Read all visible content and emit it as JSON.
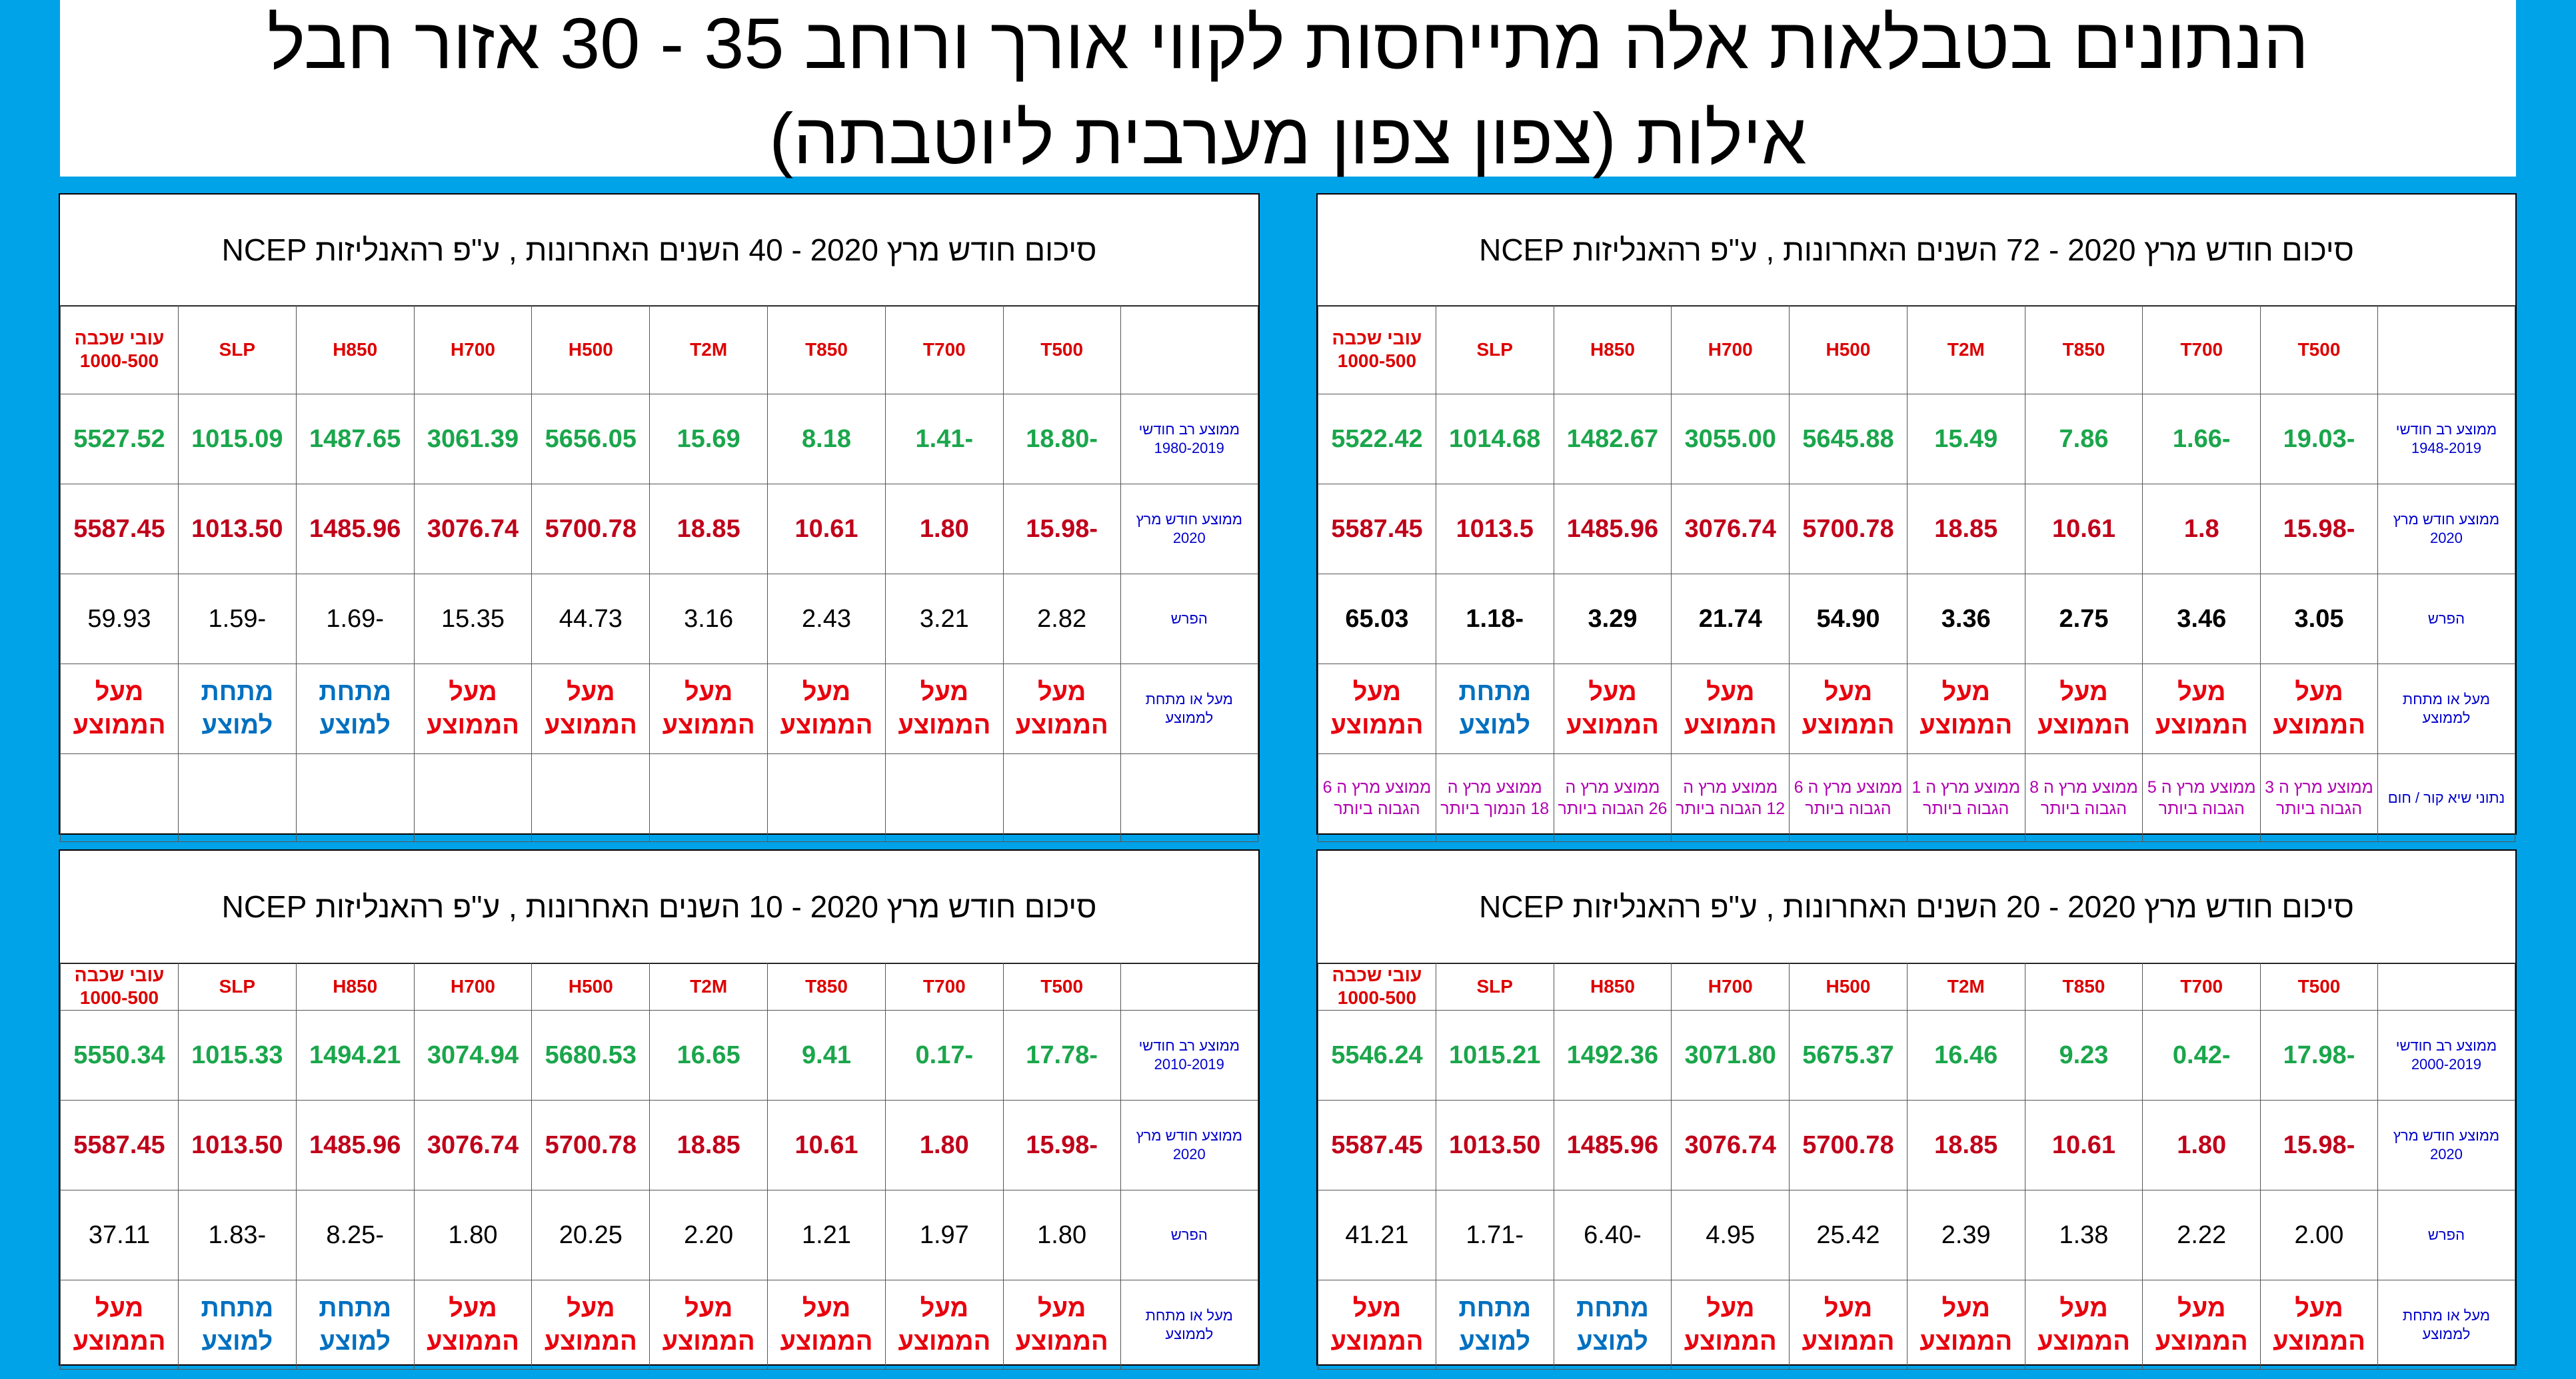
{
  "title": {
    "line1": "הנתונים בטבלאות אלה מתייחסות לקווי אורך ורוחב 35 - 30      אזור חבל",
    "line2": "אילות  (צפון צפון מערבית ליוטבתה)"
  },
  "colors": {
    "background": "#00a2e8",
    "green": "#1aa64b",
    "red": "#c0001a",
    "above": "#e8000e",
    "below": "#0070c0",
    "label": "#0000cc",
    "extreme": "#b000b0"
  },
  "columns": [
    "T500",
    "T700",
    "T850",
    "T2M",
    "H500",
    "H700",
    "H850",
    "SLP",
    "עובי שכבה 1000-500"
  ],
  "labels": {
    "current": "ממוצע חודש מרץ 2020",
    "diff": "הפרש",
    "status": "מעל או מתחת לממוצע",
    "extreme": "נתוני שיא  קור / חום"
  },
  "panels": [
    {
      "id": "72",
      "title": "סיכום חודש מרץ 2020  -  72 השנים האחרונות  , ע\"פ רהאנליזות NCEP",
      "avg_label": "ממוצע רב חודשי 1948-2019",
      "avg": [
        "-19.03",
        "-1.66",
        "7.86",
        "15.49",
        "5645.88",
        "3055.00",
        "1482.67",
        "1014.68",
        "5522.42"
      ],
      "cur": [
        "-15.98",
        "1.8",
        "10.61",
        "18.85",
        "5700.78",
        "3076.74",
        "1485.96",
        "1013.5",
        "5587.45"
      ],
      "diff": [
        "3.05",
        "3.46",
        "2.75",
        "3.36",
        "54.90",
        "21.74",
        "3.29",
        "-1.18",
        "65.03"
      ],
      "diff_bold": true,
      "status": [
        "מעל הממוצע",
        "מעל הממוצע",
        "מעל הממוצע",
        "מעל הממוצע",
        "מעל הממוצע",
        "מעל הממוצע",
        "מעל הממוצע",
        "מתחת למוצע",
        "מעל הממוצע"
      ],
      "status_type": [
        "above",
        "above",
        "above",
        "above",
        "above",
        "above",
        "above",
        "below",
        "above"
      ],
      "extreme": [
        "ממוצע מרץ ה 3 הגבוה ביותר",
        "ממוצע מרץ ה 5 הגבוה ביותר",
        "ממוצע מרץ ה 8 הגבוה ביותר",
        "ממוצע מרץ ה 1 הגבוה ביותר",
        "ממוצע מרץ ה 6 הגבוה ביותר",
        "ממוצע מרץ ה 12 הגבוה ביותר",
        "ממוצע מרץ ה 26 הגבוה ביותר",
        "ממוצע מרץ ה 18 הנמוך ביותר",
        "ממוצע מרץ ה 6 הגבוה ביותר"
      ]
    },
    {
      "id": "40",
      "title": "סיכום חודש מרץ 2020  -  40 השנים האחרונות  , ע\"פ רהאנליזות NCEP",
      "avg_label": "ממוצע רב חודשי 1980-2019",
      "avg": [
        "-18.80",
        "-1.41",
        "8.18",
        "15.69",
        "5656.05",
        "3061.39",
        "1487.65",
        "1015.09",
        "5527.52"
      ],
      "cur": [
        "-15.98",
        "1.80",
        "10.61",
        "18.85",
        "5700.78",
        "3076.74",
        "1485.96",
        "1013.50",
        "5587.45"
      ],
      "diff": [
        "2.82",
        "3.21",
        "2.43",
        "3.16",
        "44.73",
        "15.35",
        "-1.69",
        "-1.59",
        "59.93"
      ],
      "diff_bold": false,
      "status": [
        "מעל הממוצע",
        "מעל הממוצע",
        "מעל הממוצע",
        "מעל הממוצע",
        "מעל הממוצע",
        "מעל הממוצע",
        "מתחת למוצע",
        "מתחת למוצע",
        "מעל הממוצע"
      ],
      "status_type": [
        "above",
        "above",
        "above",
        "above",
        "above",
        "above",
        "below",
        "below",
        "above"
      ],
      "extreme_row_empty": true
    },
    {
      "id": "20",
      "title": "סיכום חודש מרץ 2020  -  20 השנים האחרונות  , ע\"פ רהאנליזות NCEP",
      "avg_label": "ממוצע רב חודשי 2000-2019",
      "avg": [
        "-17.98",
        "-0.42",
        "9.23",
        "16.46",
        "5675.37",
        "3071.80",
        "1492.36",
        "1015.21",
        "5546.24"
      ],
      "cur": [
        "-15.98",
        "1.80",
        "10.61",
        "18.85",
        "5700.78",
        "3076.74",
        "1485.96",
        "1013.50",
        "5587.45"
      ],
      "diff": [
        "2.00",
        "2.22",
        "1.38",
        "2.39",
        "25.42",
        "4.95",
        "-6.40",
        "-1.71",
        "41.21"
      ],
      "diff_bold": false,
      "status": [
        "מעל הממוצע",
        "מעל הממוצע",
        "מעל הממוצע",
        "מעל הממוצע",
        "מעל הממוצע",
        "מעל הממוצע",
        "מתחת למוצע",
        "מתחת למוצע",
        "מעל הממוצע"
      ],
      "status_type": [
        "above",
        "above",
        "above",
        "above",
        "above",
        "above",
        "below",
        "below",
        "above"
      ]
    },
    {
      "id": "10",
      "title": "סיכום חודש מרץ 2020  -  10 השנים האחרונות  , ע\"פ רהאנליזות NCEP",
      "avg_label": "ממוצע רב חודשי 2010-2019",
      "avg": [
        "-17.78",
        "-0.17",
        "9.41",
        "16.65",
        "5680.53",
        "3074.94",
        "1494.21",
        "1015.33",
        "5550.34"
      ],
      "cur": [
        "-15.98",
        "1.80",
        "10.61",
        "18.85",
        "5700.78",
        "3076.74",
        "1485.96",
        "1013.50",
        "5587.45"
      ],
      "diff": [
        "1.80",
        "1.97",
        "1.21",
        "2.20",
        "20.25",
        "1.80",
        "-8.25",
        "-1.83",
        "37.11"
      ],
      "diff_bold": false,
      "status": [
        "מעל הממוצע",
        "מעל הממוצע",
        "מעל הממוצע",
        "מעל הממוצע",
        "מעל הממוצע",
        "מעל הממוצע",
        "מתחת למוצע",
        "מתחת למוצע",
        "מעל הממוצע"
      ],
      "status_type": [
        "above",
        "above",
        "above",
        "above",
        "above",
        "above",
        "below",
        "below",
        "above"
      ]
    }
  ]
}
